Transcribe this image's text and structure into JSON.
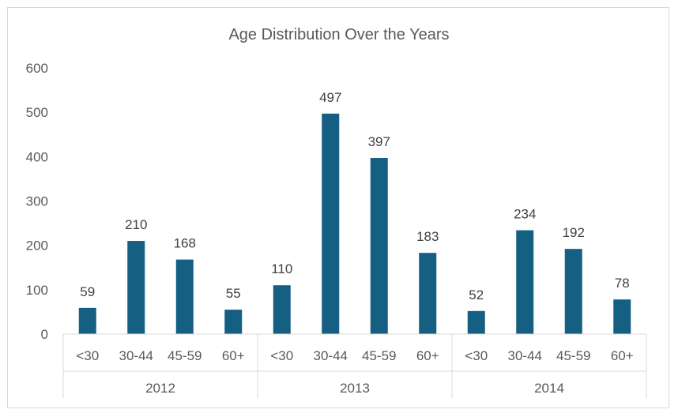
{
  "chart_data": {
    "type": "bar",
    "title": "Age Distribution Over the Years",
    "xlabel": "",
    "ylabel": "",
    "ylim": [
      0,
      600
    ],
    "yticks": [
      0,
      100,
      200,
      300,
      400,
      500,
      600
    ],
    "grid": false,
    "legend": "none",
    "bar_color": "#145f82",
    "groups": [
      {
        "label": "2012",
        "categories": [
          "<30",
          "30-44",
          "45-59",
          "60+"
        ],
        "values": [
          59,
          210,
          168,
          55
        ]
      },
      {
        "label": "2013",
        "categories": [
          "<30",
          "30-44",
          "45-59",
          "60+"
        ],
        "values": [
          110,
          497,
          397,
          183
        ]
      },
      {
        "label": "2014",
        "categories": [
          "<30",
          "30-44",
          "45-59",
          "60+"
        ],
        "values": [
          52,
          234,
          192,
          78
        ]
      }
    ]
  }
}
